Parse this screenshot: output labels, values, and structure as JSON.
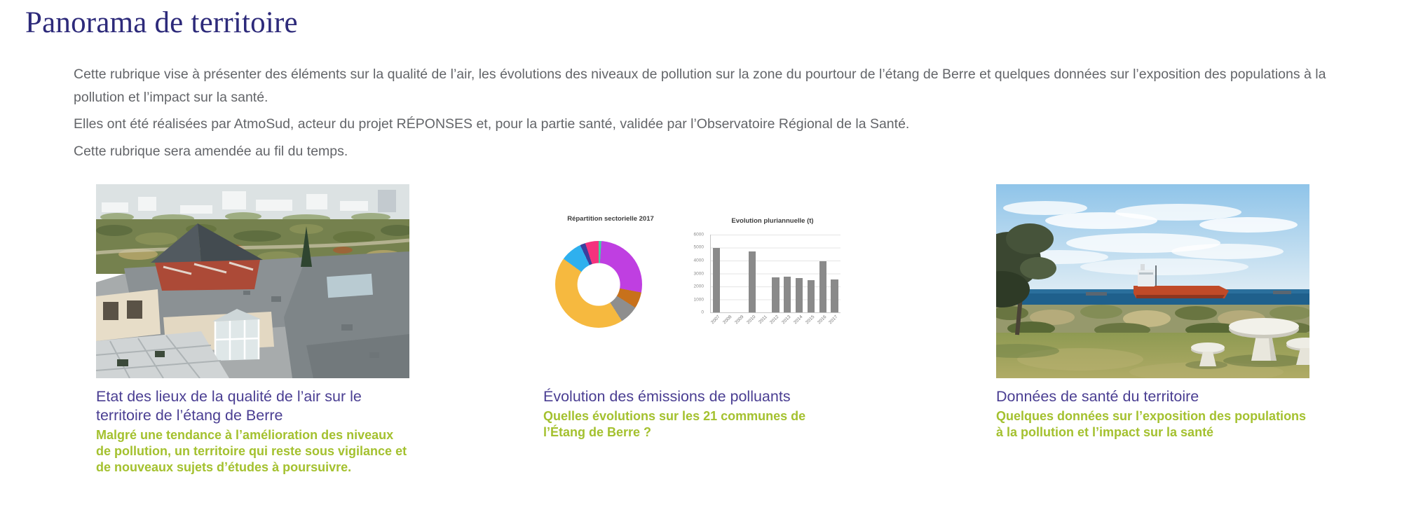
{
  "page": {
    "title": "Panorama de territoire"
  },
  "intro": {
    "p1": "Cette rubrique vise à présenter des éléments sur la qualité de l’air, les évolutions des niveaux de pollution sur la zone du pourtour de l’étang de Berre et quelques données sur l’exposition des populations à la pollution et l’impact sur la santé.",
    "p2": "Elles ont été réalisées par AtmoSud, acteur du projet RÉPONSES et, pour la partie santé, validée par l’Observatoire Régional de la Santé.",
    "p3": "Cette rubrique sera amendée au fil du temps."
  },
  "cards": [
    {
      "title": "Etat des lieux de la qualité de l’air sur le territoire de l’étang de Berre",
      "subtitle": "Malgré une tendance à l’amélioration des niveaux de pollution, un territoire qui reste sous vigilance et de nouveaux sujets d’études à poursuivre.",
      "image": "aerial-view-buildings-etang-de-berre"
    },
    {
      "title": "Évolution des émissions de polluants",
      "subtitle": "Quelles évolutions sur les 21 communes de l’Étang de Berre ?",
      "image": "emissions-charts"
    },
    {
      "title": "Données de santé du territoire",
      "subtitle": "Quelques données sur l’exposition des populations à la pollution et l’impact sur la santé",
      "image": "coastal-view-tanker-picnic-table"
    }
  ],
  "colors": {
    "heading": "#2d2a7a",
    "body_text": "#636569",
    "card_title": "#4a3e92",
    "card_subtitle": "#a4c12f",
    "bar_fill": "#8a8a8a"
  },
  "chart_data": [
    {
      "type": "pie",
      "donut": true,
      "title": "Répartition sectorielle 2017",
      "legend": "none",
      "slices": [
        {
          "color": "#3fd1a3",
          "pct": 1
        },
        {
          "color": "#bf3fe1",
          "pct": 27
        },
        {
          "color": "#c8711b",
          "pct": 6
        },
        {
          "color": "#8e8e8e",
          "pct": 7
        },
        {
          "color": "#f6b93f",
          "pct": 44
        },
        {
          "color": "#2fb0ee",
          "pct": 8
        },
        {
          "color": "#3b3f9e",
          "pct": 2
        },
        {
          "color": "#f4327d",
          "pct": 5
        }
      ]
    },
    {
      "type": "bar",
      "title": "Evolution pluriannuelle (t)",
      "categories": [
        "2007",
        "2008",
        "2009",
        "2010",
        "2011",
        "2012",
        "2013",
        "2014",
        "2015",
        "2016",
        "2017"
      ],
      "values": [
        5000,
        null,
        null,
        4700,
        null,
        2700,
        2750,
        2650,
        2500,
        3950,
        2550
      ],
      "ylim": [
        0,
        6000
      ],
      "yticks": [
        0,
        1000,
        2000,
        3000,
        4000,
        5000,
        6000
      ],
      "grid": true,
      "legend": "none",
      "bar_color": "#8a8a8a"
    }
  ]
}
